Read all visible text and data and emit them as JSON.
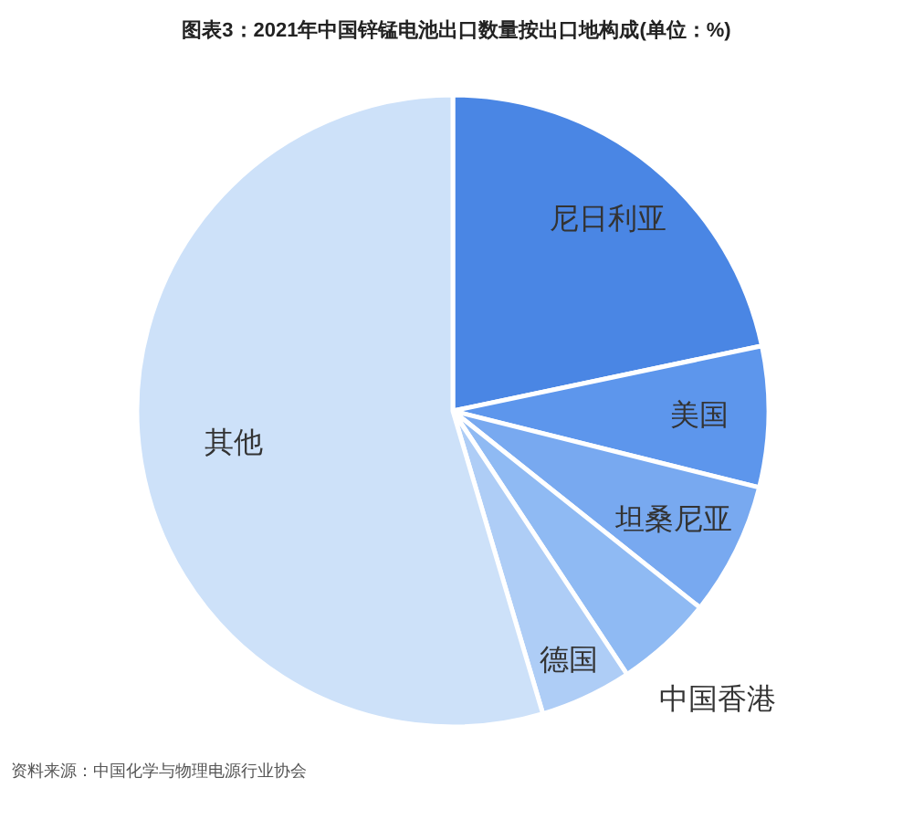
{
  "chart_data": {
    "type": "pie",
    "title": "图表3：2021年中国锌锰电池出口数量按出口地构成(单位：%)",
    "categories": [
      "尼日利亚",
      "美国",
      "坦桑尼亚",
      "中国香港",
      "德国",
      "其他"
    ],
    "values": [
      21.7,
      7.2,
      6.8,
      5.0,
      4.7,
      54.6
    ],
    "colors": [
      "#4a86e4",
      "#5d96ec",
      "#78a9f0",
      "#8fbaf3",
      "#aecdf6",
      "#cde1f9"
    ],
    "annotations": [
      "资料来源：中国化学与物理电源行业协会"
    ]
  }
}
